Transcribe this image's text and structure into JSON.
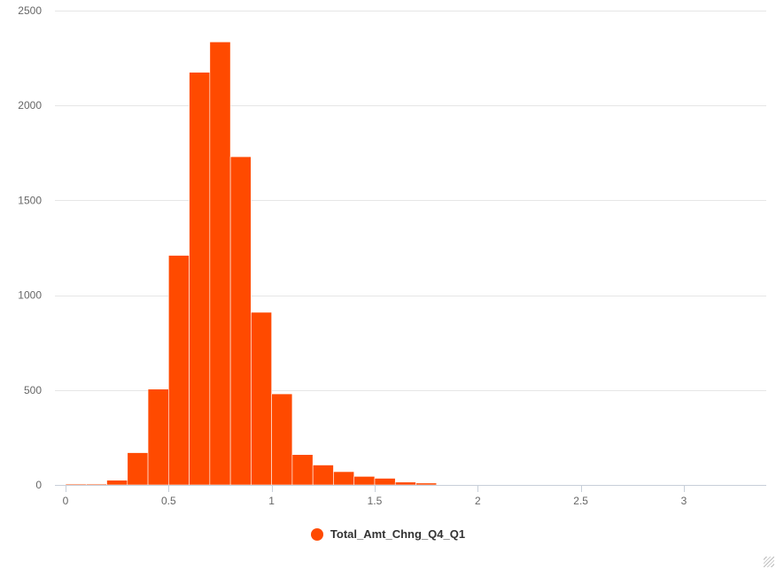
{
  "chart_data": {
    "type": "bar",
    "title": "",
    "xlabel": "",
    "ylabel": "",
    "bin_width": 0.1,
    "bins": [
      0,
      0.1,
      0.2,
      0.3,
      0.4,
      0.5,
      0.6,
      0.7,
      0.8,
      0.9,
      1.0,
      1.1,
      1.2,
      1.3,
      1.4,
      1.5,
      1.6,
      1.7
    ],
    "values": [
      5,
      5,
      25,
      170,
      505,
      1210,
      2175,
      2335,
      1730,
      910,
      480,
      160,
      105,
      70,
      45,
      35,
      15,
      10
    ],
    "xlim": [
      0,
      3.4
    ],
    "ylim": [
      0,
      2500
    ],
    "x_ticks": [
      0,
      0.5,
      1,
      1.5,
      2,
      2.5,
      3
    ],
    "x_tick_labels": [
      "0",
      "0.5",
      "1",
      "1.5",
      "2",
      "2.5",
      "3"
    ],
    "y_ticks": [
      0,
      500,
      1000,
      1500,
      2000,
      2500
    ],
    "y_tick_labels": [
      "0",
      "500",
      "1000",
      "1500",
      "2000",
      "2500"
    ],
    "grid": true,
    "legend_position": "bottom-center",
    "series": [
      {
        "name": "Total_Amt_Chng_Q4_Q1",
        "color": "#ff4a00"
      }
    ]
  },
  "legend": {
    "label": "Total_Amt_Chng_Q4_Q1",
    "color": "#ff4a00"
  }
}
